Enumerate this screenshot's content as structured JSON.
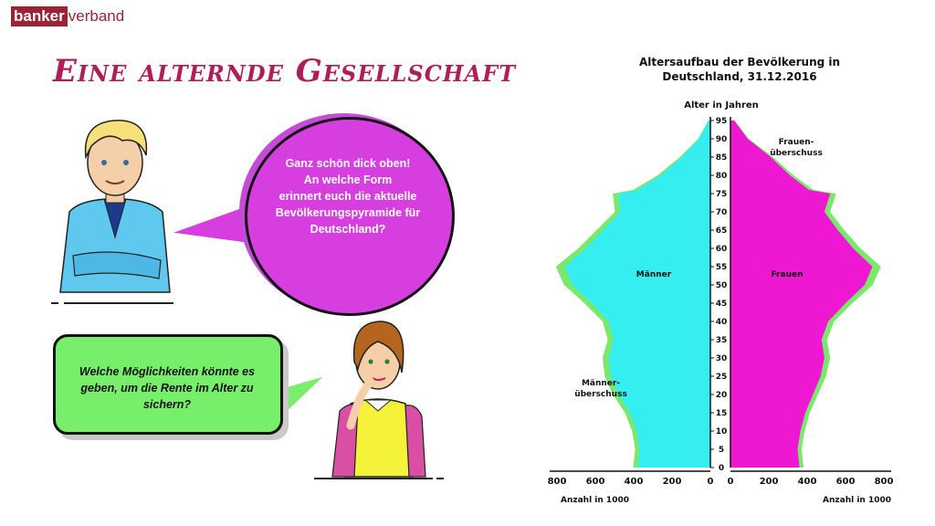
{
  "logo": {
    "part1": "banker",
    "part2": "verband"
  },
  "slide_title": "Eine alternde Gesellschaft",
  "bubble_top": {
    "lines": [
      "Ganz schön dick oben!",
      "An welche Form",
      "erinnert euch die aktuelle",
      "Bevölkerungspyramide für",
      "Deutschland?"
    ]
  },
  "bubble_bottom": {
    "lines": [
      "Welche Möglichkeiten könnte es",
      "geben, um die Rente im Alter zu",
      "sichern?"
    ]
  },
  "colors": {
    "male": "#34eef0",
    "female": "#ee18d3",
    "surplus": "#7ae86a",
    "title": "#b01e5a",
    "bubble_top": "#d63ee0",
    "bubble_bottom": "#77ef6a"
  },
  "chart_data": {
    "type": "area",
    "title": "Altersaufbau der Bevölkerung in Deutschland, 31.12.2016",
    "ylabel": "Alter in Jahren",
    "xlabel_left": "Anzahl in 1000",
    "xlabel_right": "Anzahl in 1000",
    "y_ticks": [
      0,
      5,
      10,
      15,
      20,
      25,
      30,
      35,
      40,
      45,
      50,
      55,
      60,
      65,
      70,
      75,
      80,
      85,
      90,
      95
    ],
    "x_ticks_left": [
      800,
      600,
      400,
      200,
      0
    ],
    "x_ticks_right": [
      0,
      200,
      400,
      600,
      800
    ],
    "xlim": [
      0,
      800
    ],
    "ylim": [
      0,
      95
    ],
    "series_labels": {
      "male": "Männer",
      "female": "Frauen"
    },
    "annotations": {
      "female_surplus": "Frauen-überschuss",
      "male_surplus": "Männer-überschuss"
    },
    "ages": [
      0,
      5,
      10,
      15,
      20,
      25,
      30,
      35,
      40,
      45,
      50,
      55,
      60,
      65,
      70,
      75,
      76,
      80,
      85,
      90,
      95
    ],
    "male": [
      380,
      370,
      385,
      420,
      480,
      520,
      530,
      505,
      530,
      620,
      720,
      760,
      650,
      560,
      470,
      480,
      380,
      260,
      150,
      60,
      10
    ],
    "female": [
      360,
      350,
      365,
      390,
      430,
      470,
      490,
      475,
      510,
      600,
      700,
      740,
      640,
      560,
      490,
      520,
      410,
      310,
      210,
      90,
      20
    ]
  }
}
